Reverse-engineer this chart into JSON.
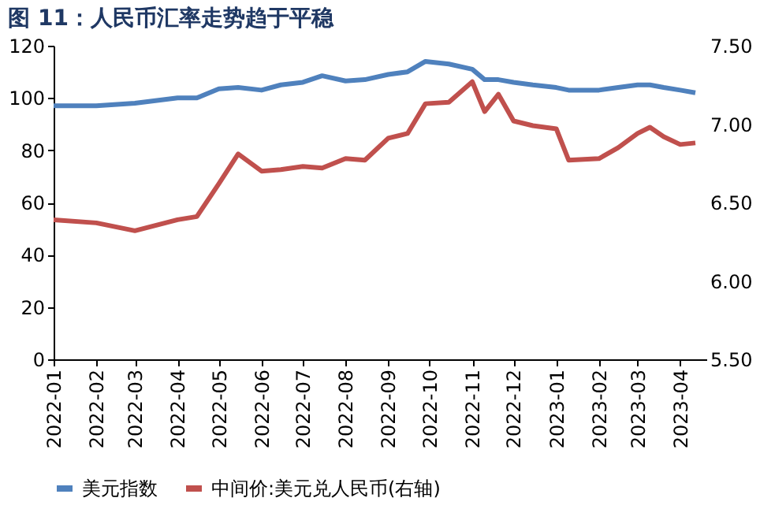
{
  "chart_data": {
    "type": "line",
    "title": "图 11：人民币汇率走势趋于平稳",
    "x": [
      "2022-01-01",
      "2022-02-01",
      "2022-03-01",
      "2022-04-01",
      "2022-04-15",
      "2022-05-01",
      "2022-05-15",
      "2022-06-01",
      "2022-06-15",
      "2022-07-01",
      "2022-07-15",
      "2022-08-01",
      "2022-08-15",
      "2022-09-01",
      "2022-09-15",
      "2022-09-28",
      "2022-10-15",
      "2022-11-01",
      "2022-11-10",
      "2022-11-20",
      "2022-12-01",
      "2022-12-15",
      "2023-01-01",
      "2023-01-10",
      "2023-02-01",
      "2023-02-15",
      "2023-03-01",
      "2023-03-10",
      "2023-03-20",
      "2023-04-01",
      "2023-04-12"
    ],
    "series": [
      {
        "name": "美元指数",
        "color": "#4f81bd",
        "values": [
          97,
          97,
          98,
          100,
          100,
          103.5,
          104,
          103,
          105,
          106,
          108.5,
          106.5,
          107,
          109,
          110,
          114,
          113,
          111,
          107,
          107,
          106,
          105,
          104,
          103,
          103,
          104,
          105,
          105,
          104,
          103,
          102
        ]
      },
      {
        "name": "中间价:美元兑人民币(右轴)",
        "color": "#c0504d",
        "axis": "y2",
        "values": [
          6.39,
          6.37,
          6.32,
          6.39,
          6.41,
          6.62,
          6.81,
          6.7,
          6.71,
          6.73,
          6.72,
          6.78,
          6.77,
          6.91,
          6.94,
          7.13,
          7.14,
          7.27,
          7.08,
          7.19,
          7.02,
          6.99,
          6.97,
          6.77,
          6.78,
          6.85,
          6.94,
          6.98,
          6.92,
          6.87,
          6.88
        ]
      }
    ],
    "xlim": [
      "2022-01-01",
      "2023-04-20"
    ],
    "xticks": [
      {
        "value": "2022-01-01",
        "label": "2022-01"
      },
      {
        "value": "2022-02-01",
        "label": "2022-02"
      },
      {
        "value": "2022-03-01",
        "label": "2022-03"
      },
      {
        "value": "2022-04-01",
        "label": "2022-04"
      },
      {
        "value": "2022-05-01",
        "label": "2022-05"
      },
      {
        "value": "2022-06-01",
        "label": "2022-06"
      },
      {
        "value": "2022-07-01",
        "label": "2022-07"
      },
      {
        "value": "2022-08-01",
        "label": "2022-08"
      },
      {
        "value": "2022-09-01",
        "label": "2022-09"
      },
      {
        "value": "2022-10-01",
        "label": "2022-10"
      },
      {
        "value": "2022-11-01",
        "label": "2022-11"
      },
      {
        "value": "2022-12-01",
        "label": "2022-12"
      },
      {
        "value": "2023-01-01",
        "label": "2023-01"
      },
      {
        "value": "2023-02-01",
        "label": "2023-02"
      },
      {
        "value": "2023-03-01",
        "label": "2023-03"
      },
      {
        "value": "2023-04-01",
        "label": "2023-04"
      }
    ],
    "ylim": [
      0,
      120
    ],
    "yticks": [
      0,
      20,
      40,
      60,
      80,
      100,
      120
    ],
    "y2lim": [
      5.5,
      7.5
    ],
    "y2ticks": [
      {
        "value": 5.5,
        "label": "5.50"
      },
      {
        "value": 6,
        "label": "6.00"
      },
      {
        "value": 6.5,
        "label": "6.50"
      },
      {
        "value": 7,
        "label": "7.00"
      },
      {
        "value": 7.5,
        "label": "7.50"
      }
    ],
    "grid": false,
    "legend": "bottom",
    "marker": "none",
    "line_style": "solid"
  }
}
